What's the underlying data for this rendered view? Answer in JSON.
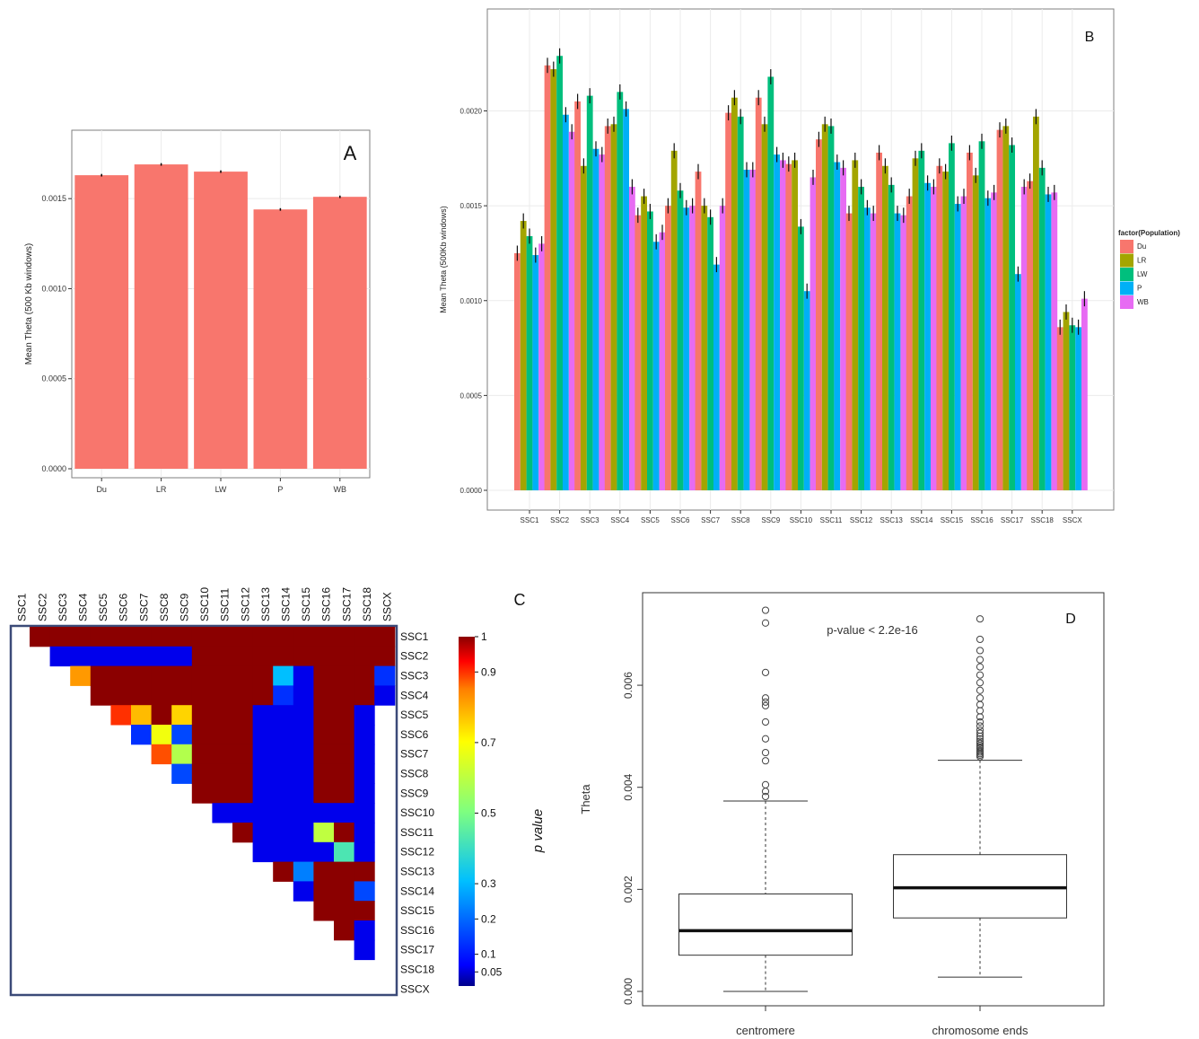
{
  "colors": {
    "Du": "#f8766d",
    "LR": "#a3a500",
    "LW": "#00bf7d",
    "P": "#00b0f6",
    "WB": "#e76bf3",
    "panel_bg": "#ffffff",
    "grid": "#ebebeb",
    "frame": "#3b4a78"
  },
  "chart_data": [
    {
      "panel": "A",
      "type": "bar",
      "panel_label": "A",
      "ylabel": "Mean Theta (500 Kb windows)",
      "categories": [
        "Du",
        "LR",
        "LW",
        "P",
        "WB"
      ],
      "values": [
        0.00163,
        0.00169,
        0.00165,
        0.00144,
        0.00151
      ],
      "errors": [
        7e-06,
        7e-06,
        7e-06,
        7e-06,
        7e-06
      ],
      "ylim": [
        0,
        0.00184
      ],
      "yticks": [
        0,
        0.0005,
        0.001,
        0.0015
      ],
      "ytick_labels": [
        "0.0000",
        "0.0005",
        "0.0010",
        "0.0015"
      ],
      "bar_color": "#f8766d",
      "grid": true
    },
    {
      "panel": "B",
      "type": "bar",
      "panel_label": "B",
      "ylabel": "Mean Theta (500Kb windows)",
      "legend_title": "factor(Population)",
      "legend_position": "right",
      "categories": [
        "SSC1",
        "SSC2",
        "SSC3",
        "SSC4",
        "SSC5",
        "SSC6",
        "SSC7",
        "SSC8",
        "SSC9",
        "SSC10",
        "SSC11",
        "SSC12",
        "SSC13",
        "SSC14",
        "SSC15",
        "SSC16",
        "SSC17",
        "SSC18",
        "SSCX"
      ],
      "series": [
        {
          "name": "Du",
          "values": [
            0.00125,
            0.00224,
            0.00205,
            0.00192,
            0.00145,
            0.0015,
            0.00168,
            0.00199,
            0.00207,
            0.00172,
            0.00185,
            0.00146,
            0.00178,
            0.00155,
            0.00171,
            0.00178,
            0.0019,
            0.00163,
            0.00086
          ]
        },
        {
          "name": "LR",
          "values": [
            0.00142,
            0.00222,
            0.00171,
            0.00193,
            0.00155,
            0.00179,
            0.0015,
            0.00207,
            0.00193,
            0.00174,
            0.00193,
            0.00174,
            0.00171,
            0.00175,
            0.00168,
            0.00166,
            0.00192,
            0.00197,
            0.00094
          ]
        },
        {
          "name": "LW",
          "values": [
            0.00134,
            0.00229,
            0.00208,
            0.0021,
            0.00147,
            0.00158,
            0.00144,
            0.00197,
            0.00218,
            0.00139,
            0.00192,
            0.0016,
            0.00161,
            0.00179,
            0.00183,
            0.00184,
            0.00182,
            0.0017,
            0.00087
          ]
        },
        {
          "name": "P",
          "values": [
            0.00124,
            0.00198,
            0.0018,
            0.00201,
            0.00131,
            0.00149,
            0.00119,
            0.00169,
            0.00177,
            0.00105,
            0.00173,
            0.00149,
            0.00146,
            0.00162,
            0.00151,
            0.00154,
            0.00114,
            0.00156,
            0.00086
          ]
        },
        {
          "name": "WB",
          "values": [
            0.0013,
            0.00189,
            0.00177,
            0.0016,
            0.00136,
            0.0015,
            0.0015,
            0.00169,
            0.00174,
            0.00165,
            0.0017,
            0.00146,
            0.00145,
            0.0016,
            0.00155,
            0.00157,
            0.0016,
            0.00157,
            0.00101
          ]
        }
      ],
      "error": 4e-05,
      "ylim": [
        0,
        0.00249
      ],
      "yticks": [
        0,
        0.0005,
        0.001,
        0.0015,
        0.002
      ],
      "ytick_labels": [
        "0.0000",
        "0.0005",
        "0.0010",
        "0.0015",
        "0.0020"
      ],
      "grid": true
    },
    {
      "panel": "C",
      "type": "heatmap",
      "panel_label": "C",
      "colorbar_label": "p value",
      "colorbar_ticks": [
        0.05,
        0.1,
        0.2,
        0.3,
        0.5,
        0.7,
        0.9,
        1
      ],
      "colorbar_tick_labels": [
        "0.05",
        "0.1",
        "0.2",
        "0.3",
        "0.5",
        "0.7",
        "0.9",
        "1"
      ],
      "labels": [
        "SSC1",
        "SSC2",
        "SSC3",
        "SSC4",
        "SSC5",
        "SSC6",
        "SSC7",
        "SSC8",
        "SSC9",
        "SSC10",
        "SSC11",
        "SSC12",
        "SSC13",
        "SSC14",
        "SSC15",
        "SSC16",
        "SSC17",
        "SSC18",
        "SSCX"
      ],
      "p_values": [
        [
          1,
          1,
          1,
          1,
          1,
          1,
          1,
          1,
          1,
          1,
          1,
          1,
          1,
          1,
          1,
          1,
          1,
          1
        ],
        [
          0.05,
          0.05,
          0.05,
          0.05,
          0.05,
          0.05,
          0.05,
          1,
          1,
          1,
          1,
          1,
          1,
          1,
          1,
          1,
          1
        ],
        [
          0.82,
          1,
          1,
          1,
          1,
          1,
          1,
          1,
          1,
          1,
          0.3,
          0.05,
          1,
          1,
          1,
          0.12
        ],
        [
          1,
          1,
          1,
          1,
          1,
          1,
          1,
          1,
          1,
          0.12,
          0.05,
          1,
          1,
          1,
          0.05
        ],
        [
          0.9,
          0.78,
          1,
          0.75,
          1,
          1,
          1,
          0.05,
          0.05,
          0.05,
          1,
          1,
          0.05
        ],
        [
          0.12,
          0.68,
          0.15,
          1,
          1,
          1,
          0.05,
          0.05,
          0.05,
          1,
          1,
          0.05
        ],
        [
          0.88,
          0.58,
          1,
          1,
          1,
          0.05,
          0.05,
          0.05,
          1,
          1,
          0.05
        ],
        [
          0.15,
          1,
          1,
          1,
          0.05,
          0.05,
          0.05,
          1,
          1,
          0.05
        ],
        [
          1,
          1,
          1,
          0.05,
          0.05,
          0.05,
          1,
          1,
          0.05
        ],
        [
          0.05,
          0.05,
          0.05,
          0.05,
          0.05,
          0.05,
          0.05,
          0.05
        ],
        [
          1,
          0.05,
          0.05,
          0.05,
          0.6,
          1,
          0.05
        ],
        [
          0.05,
          0.05,
          0.05,
          0.05,
          0.42,
          0.05
        ],
        [
          1,
          0.22,
          1,
          1,
          1
        ],
        [
          0.05,
          1,
          1,
          0.15
        ],
        [
          1,
          1,
          1
        ],
        [
          1,
          0.05
        ],
        [
          0.05
        ],
        []
      ]
    },
    {
      "panel": "D",
      "type": "box",
      "panel_label": "D",
      "ylabel": "Theta",
      "annotation": "p-value < 2.2e-16",
      "categories": [
        "centromere",
        "chromosome ends"
      ],
      "boxes": [
        {
          "whisker_low": 0.0,
          "q1": 0.00071,
          "median": 0.00119,
          "q3": 0.00191,
          "whisker_high": 0.00373,
          "outliers": [
            0.00382,
            0.00392,
            0.00405,
            0.00452,
            0.00468,
            0.00495,
            0.00528,
            0.0056,
            0.00567,
            0.00575,
            0.00625,
            0.00722,
            0.00747
          ]
        },
        {
          "whisker_low": 0.00028,
          "q1": 0.00144,
          "median": 0.00203,
          "q3": 0.00268,
          "whisker_high": 0.00453,
          "outliers": [
            0.0046,
            0.00463,
            0.00466,
            0.00469,
            0.00472,
            0.00476,
            0.00479,
            0.00482,
            0.00486,
            0.0049,
            0.00495,
            0.005,
            0.00506,
            0.00512,
            0.0052,
            0.00528,
            0.00538,
            0.0055,
            0.00562,
            0.00575,
            0.0059,
            0.00605,
            0.0062,
            0.00636,
            0.0065,
            0.00668,
            0.0069,
            0.0073
          ]
        }
      ],
      "ylim": [
        0,
        0.00755
      ],
      "yticks": [
        0,
        0.002,
        0.004,
        0.006
      ],
      "ytick_labels": [
        "0.000",
        "0.002",
        "0.004",
        "0.006"
      ]
    }
  ]
}
